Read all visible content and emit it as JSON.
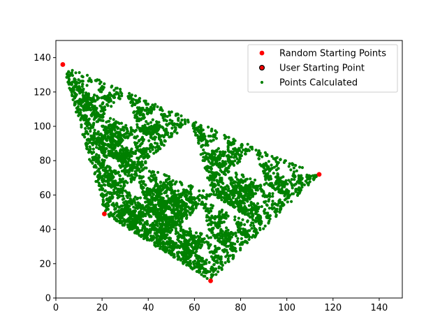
{
  "chart_data": {
    "type": "scatter",
    "title": "",
    "xlabel": "",
    "ylabel": "",
    "xlim": [
      0,
      150
    ],
    "ylim": [
      0,
      150
    ],
    "xticks": [
      0,
      20,
      40,
      60,
      80,
      100,
      120,
      140
    ],
    "yticks": [
      0,
      20,
      40,
      60,
      80,
      100,
      120,
      140
    ],
    "grid": false,
    "legend_position": "top-right",
    "series": [
      {
        "name": "Random Starting Points",
        "marker": "circle",
        "color": "#ff0000",
        "edge": "none",
        "points": [
          [
            3,
            136
          ],
          [
            21,
            49
          ],
          [
            67,
            10
          ],
          [
            114,
            72
          ]
        ]
      },
      {
        "name": "User Starting Point",
        "marker": "circle",
        "color": "#ff0000",
        "edge": "#000000",
        "points": []
      },
      {
        "name": "Points Calculated",
        "marker": "circle",
        "color": "#008000",
        "edge": "none",
        "generator": "chaos-game",
        "vertices": [
          [
            3,
            136
          ],
          [
            21,
            49
          ],
          [
            67,
            10
          ],
          [
            114,
            72
          ]
        ],
        "jump_ratio": 0.5,
        "count": 5000
      }
    ]
  }
}
